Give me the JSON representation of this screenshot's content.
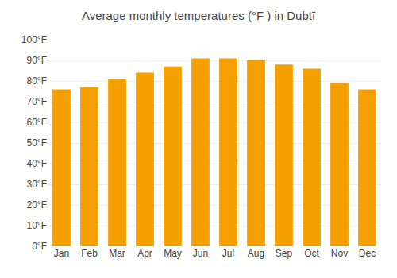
{
  "chart_data": {
    "type": "bar",
    "title": "Average monthly temperatures (°F ) in Dubtī",
    "categories": [
      "Jan",
      "Feb",
      "Mar",
      "Apr",
      "May",
      "Jun",
      "Jul",
      "Aug",
      "Sep",
      "Oct",
      "Nov",
      "Dec"
    ],
    "values": [
      76,
      77,
      81,
      84,
      87,
      91,
      91,
      90,
      88,
      86,
      79,
      76
    ],
    "color": "#F5A000",
    "ylim": [
      0,
      100
    ],
    "yticks": [
      {
        "value": 0,
        "label": "0°F"
      },
      {
        "value": 10,
        "label": "10°F"
      },
      {
        "value": 20,
        "label": "20°F"
      },
      {
        "value": 30,
        "label": "30°F"
      },
      {
        "value": 40,
        "label": "40°F"
      },
      {
        "value": 50,
        "label": "50°F"
      },
      {
        "value": 60,
        "label": "60°F"
      },
      {
        "value": 70,
        "label": "70°F"
      },
      {
        "value": 80,
        "label": "80°F"
      },
      {
        "value": 90,
        "label": "90°F"
      },
      {
        "value": 100,
        "label": "100°F"
      }
    ],
    "grid": true
  }
}
